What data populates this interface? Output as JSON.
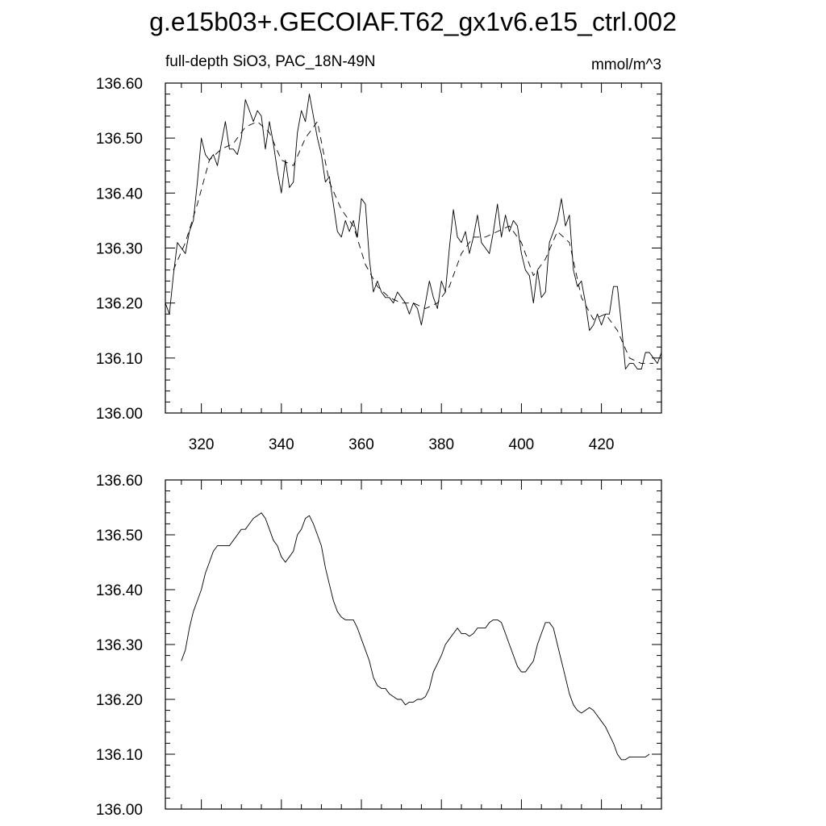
{
  "figure": {
    "title": "g.e15b03+.GECOIAF.T62_gx1v6.e15_ctrl.002",
    "subtitle_left": "full-depth SiO3, PAC_18N-49N",
    "subtitle_right": "mmol/m^3"
  },
  "chart_data": [
    {
      "type": "line",
      "xlim": [
        311,
        435
      ],
      "ylim": [
        136.0,
        136.6
      ],
      "x_ticks": [
        320,
        340,
        360,
        380,
        400,
        420
      ],
      "x_tick_labels": [
        "320",
        "340",
        "360",
        "380",
        "400",
        "420"
      ],
      "y_ticks": [
        136.0,
        136.1,
        136.2,
        136.3,
        136.4,
        136.5,
        136.6
      ],
      "y_tick_labels": [
        "136.00",
        "136.10",
        "136.20",
        "136.30",
        "136.40",
        "136.50",
        "136.60"
      ],
      "grid": false,
      "series": [
        {
          "style": "solid",
          "x": [
            311,
            312,
            313,
            314,
            315,
            316,
            317,
            318,
            319,
            320,
            321,
            322,
            323,
            324,
            325,
            326,
            327,
            328,
            329,
            330,
            331,
            332,
            333,
            334,
            335,
            336,
            337,
            338,
            339,
            340,
            341,
            342,
            343,
            344,
            345,
            346,
            347,
            348,
            349,
            350,
            351,
            352,
            353,
            354,
            355,
            356,
            357,
            358,
            359,
            360,
            361,
            362,
            363,
            364,
            365,
            366,
            367,
            368,
            369,
            370,
            371,
            372,
            373,
            374,
            375,
            376,
            377,
            378,
            379,
            380,
            381,
            382,
            383,
            384,
            385,
            386,
            387,
            388,
            389,
            390,
            391,
            392,
            393,
            394,
            395,
            396,
            397,
            398,
            399,
            400,
            401,
            402,
            403,
            404,
            405,
            406,
            407,
            408,
            409,
            410,
            411,
            412,
            413,
            414,
            415,
            416,
            417,
            418,
            419,
            420,
            421,
            422,
            423,
            424,
            425,
            426,
            427,
            428,
            429,
            430,
            431,
            432,
            433,
            434,
            435
          ],
          "values": [
            136.2,
            136.18,
            136.25,
            136.31,
            136.3,
            136.29,
            136.33,
            136.35,
            136.42,
            136.5,
            136.47,
            136.46,
            136.47,
            136.45,
            136.49,
            136.53,
            136.48,
            136.48,
            136.47,
            136.5,
            136.57,
            136.55,
            136.53,
            136.55,
            136.54,
            136.48,
            136.53,
            136.49,
            136.44,
            136.4,
            136.46,
            136.41,
            136.42,
            136.51,
            136.55,
            136.53,
            136.58,
            136.54,
            136.5,
            136.47,
            136.42,
            136.43,
            136.38,
            136.33,
            136.32,
            136.35,
            136.33,
            136.35,
            136.32,
            136.39,
            136.38,
            136.28,
            136.22,
            136.24,
            136.22,
            136.21,
            136.21,
            136.2,
            136.22,
            136.21,
            136.2,
            136.18,
            136.2,
            136.19,
            136.16,
            136.2,
            136.24,
            136.21,
            136.19,
            136.24,
            136.22,
            136.3,
            136.37,
            136.32,
            136.31,
            136.33,
            136.29,
            136.32,
            136.36,
            136.31,
            136.3,
            136.29,
            136.33,
            136.38,
            136.32,
            136.36,
            136.33,
            136.35,
            136.34,
            136.29,
            136.26,
            136.25,
            136.2,
            136.26,
            136.21,
            136.22,
            136.31,
            136.33,
            136.35,
            136.39,
            136.34,
            136.36,
            136.26,
            136.23,
            136.24,
            136.2,
            136.15,
            136.16,
            136.18,
            136.16,
            136.18,
            136.18,
            136.23,
            136.23,
            136.16,
            136.08,
            136.09,
            136.09,
            136.08,
            136.08,
            136.11,
            136.11,
            136.1,
            136.09,
            136.11
          ]
        },
        {
          "style": "dashed",
          "x": [
            313,
            316,
            319,
            322,
            325,
            328,
            331,
            334,
            337,
            340,
            343,
            346,
            349,
            352,
            355,
            358,
            361,
            364,
            367,
            370,
            373,
            376,
            379,
            382,
            385,
            388,
            391,
            394,
            397,
            400,
            403,
            406,
            409,
            412,
            415,
            418,
            421,
            424,
            427,
            430,
            433
          ],
          "values": [
            136.26,
            136.31,
            136.38,
            136.46,
            136.48,
            136.49,
            136.52,
            136.53,
            136.51,
            136.46,
            136.45,
            136.5,
            136.53,
            136.42,
            136.37,
            136.34,
            136.27,
            136.23,
            136.21,
            136.2,
            136.2,
            136.19,
            136.2,
            136.23,
            136.29,
            136.32,
            136.32,
            136.33,
            136.34,
            136.31,
            136.25,
            136.28,
            136.33,
            136.31,
            136.21,
            136.17,
            136.18,
            136.15,
            136.1,
            136.09,
            136.09
          ]
        }
      ]
    },
    {
      "type": "line",
      "xlim": [
        311,
        435
      ],
      "ylim": [
        136.0,
        136.6
      ],
      "x_ticks": [
        320,
        340,
        360,
        380,
        400,
        420
      ],
      "y_ticks": [
        136.0,
        136.1,
        136.2,
        136.3,
        136.4,
        136.5,
        136.6
      ],
      "y_tick_labels": [
        "136.00",
        "136.10",
        "136.20",
        "136.30",
        "136.40",
        "136.50",
        "136.60"
      ],
      "grid": false,
      "series": [
        {
          "style": "solid",
          "x": [
            315,
            316,
            317,
            318,
            319,
            320,
            321,
            322,
            323,
            324,
            325,
            326,
            327,
            328,
            329,
            330,
            331,
            332,
            333,
            334,
            335,
            336,
            337,
            338,
            339,
            340,
            341,
            342,
            343,
            344,
            345,
            346,
            347,
            348,
            349,
            350,
            351,
            352,
            353,
            354,
            355,
            356,
            357,
            358,
            359,
            360,
            361,
            362,
            363,
            364,
            365,
            366,
            367,
            368,
            369,
            370,
            371,
            372,
            373,
            374,
            375,
            376,
            377,
            378,
            379,
            380,
            381,
            382,
            383,
            384,
            385,
            386,
            387,
            388,
            389,
            390,
            391,
            392,
            393,
            394,
            395,
            396,
            397,
            398,
            399,
            400,
            401,
            402,
            403,
            404,
            405,
            406,
            407,
            408,
            409,
            410,
            411,
            412,
            413,
            414,
            415,
            416,
            417,
            418,
            419,
            420,
            421,
            422,
            423,
            424,
            425,
            426,
            427,
            428,
            429,
            430,
            431,
            432
          ],
          "values": [
            136.27,
            136.29,
            136.33,
            136.36,
            136.38,
            136.4,
            136.43,
            136.45,
            136.47,
            136.48,
            136.48,
            136.48,
            136.48,
            136.49,
            136.5,
            136.51,
            136.51,
            136.52,
            136.53,
            136.535,
            136.54,
            136.53,
            136.51,
            136.49,
            136.48,
            136.46,
            136.45,
            136.46,
            136.47,
            136.5,
            136.51,
            136.53,
            136.535,
            136.52,
            136.5,
            136.48,
            136.44,
            136.41,
            136.38,
            136.36,
            136.35,
            136.345,
            136.345,
            136.345,
            136.33,
            136.31,
            136.29,
            136.27,
            136.24,
            136.225,
            136.22,
            136.22,
            136.21,
            136.205,
            136.2,
            136.2,
            136.19,
            136.195,
            136.195,
            136.2,
            136.2,
            136.205,
            136.22,
            136.25,
            136.265,
            136.28,
            136.3,
            136.31,
            136.32,
            136.33,
            136.32,
            136.32,
            136.315,
            136.32,
            136.33,
            136.33,
            136.33,
            136.34,
            136.345,
            136.345,
            136.34,
            136.32,
            136.3,
            136.28,
            136.26,
            136.25,
            136.25,
            136.26,
            136.27,
            136.3,
            136.32,
            136.34,
            136.34,
            136.33,
            136.3,
            136.27,
            136.24,
            136.21,
            136.19,
            136.18,
            136.175,
            136.18,
            136.185,
            136.18,
            136.17,
            136.16,
            136.15,
            136.135,
            136.12,
            136.1,
            136.09,
            136.09,
            136.095,
            136.095,
            136.095,
            136.095,
            136.095,
            136.1
          ]
        }
      ]
    }
  ]
}
